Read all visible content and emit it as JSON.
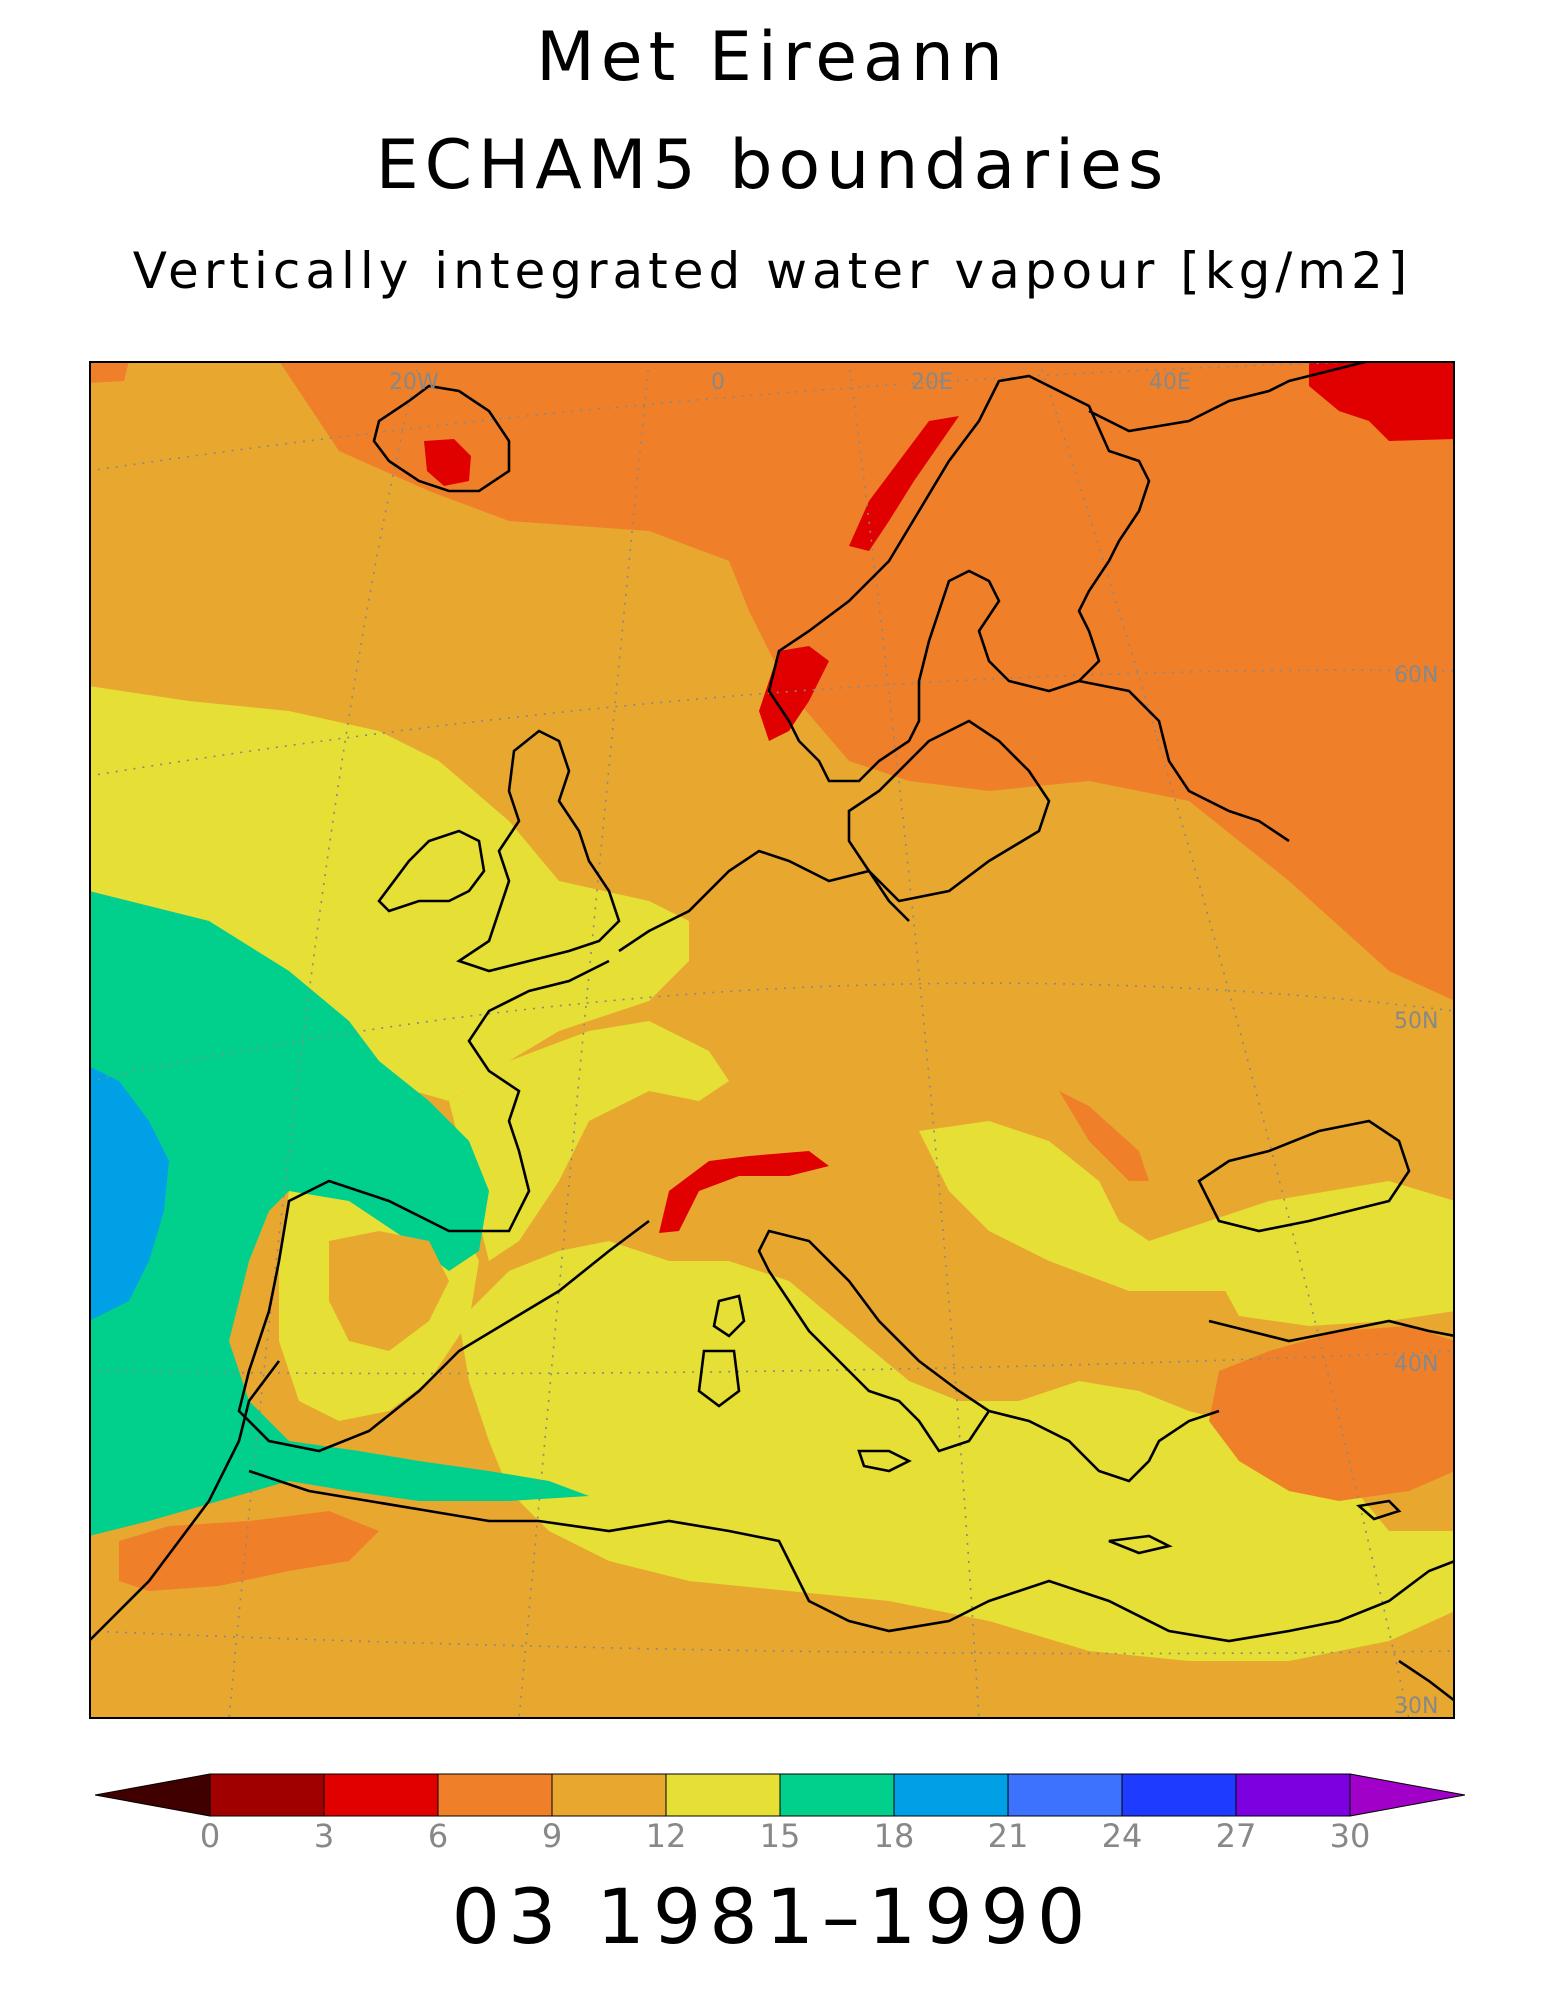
{
  "titles": {
    "line1": "Met Eireann",
    "line2": "ECHAM5 boundaries",
    "line3": "Vertically integrated water vapour [kg/m2]"
  },
  "map": {
    "lon_labels": [
      "20W",
      "0",
      "20E",
      "40E"
    ],
    "lat_labels": [
      "60N",
      "50N",
      "40N",
      "30N"
    ],
    "colors": {
      "dark_red": "#a00000",
      "red": "#e00000",
      "orange": "#ef8029",
      "light_orange": "#e8a830",
      "yellow": "#e5df36",
      "green": "#00d08c",
      "blue": "#00a0e6",
      "coast": "#000000",
      "grid": "#888888"
    }
  },
  "colorbar": {
    "labels": [
      "0",
      "3",
      "6",
      "9",
      "12",
      "15",
      "18",
      "21",
      "24",
      "27",
      "30"
    ],
    "colors": [
      "#a00000",
      "#e00000",
      "#ef8029",
      "#e8a830",
      "#e5df36",
      "#00d08c",
      "#00a0e6",
      "#3d72ff",
      "#1e3cff",
      "#7c00e0"
    ],
    "under_color": "#400000",
    "over_color": "#a000c8"
  },
  "footer": "03 1981–1990"
}
